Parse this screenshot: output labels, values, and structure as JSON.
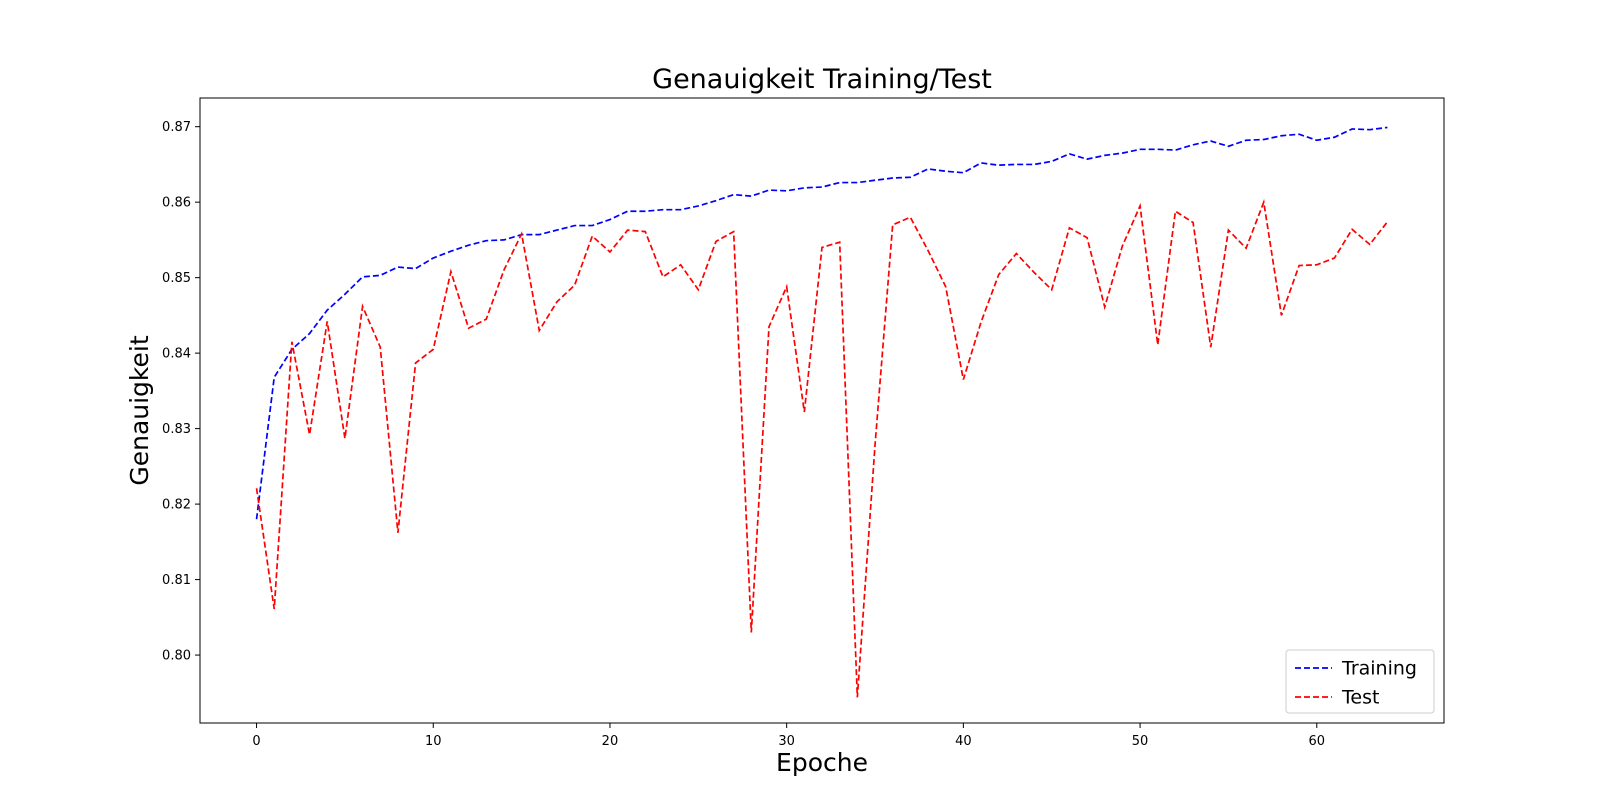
{
  "chart_data": {
    "type": "line",
    "title": "Genauigkeit Training/Test",
    "xlabel": "Epoche",
    "ylabel": "Genauigkeit",
    "xlim": [
      -3.2,
      67.2
    ],
    "ylim": [
      0.791,
      0.8738
    ],
    "xticks": [
      0,
      10,
      20,
      30,
      40,
      50,
      60
    ],
    "yticks": [
      0.8,
      0.81,
      0.82,
      0.83,
      0.84,
      0.85,
      0.86,
      0.87
    ],
    "ytick_format": 2,
    "grid": false,
    "legend_position": "lower-right",
    "x": [
      0,
      1,
      2,
      3,
      4,
      5,
      6,
      7,
      8,
      9,
      10,
      11,
      12,
      13,
      14,
      15,
      16,
      17,
      18,
      19,
      20,
      21,
      22,
      23,
      24,
      25,
      26,
      27,
      28,
      29,
      30,
      31,
      32,
      33,
      34,
      35,
      36,
      37,
      38,
      39,
      40,
      41,
      42,
      43,
      44,
      45,
      46,
      47,
      48,
      49,
      50,
      51,
      52,
      53,
      54,
      55,
      56,
      57,
      58,
      59,
      60,
      61,
      62,
      63,
      64
    ],
    "series": [
      {
        "name": "Training",
        "color": "#0000ff",
        "linestyle": "dashed",
        "values": [
          0.818,
          0.8368,
          0.8405,
          0.8426,
          0.8457,
          0.8478,
          0.8501,
          0.8503,
          0.8514,
          0.8512,
          0.8526,
          0.8535,
          0.8543,
          0.8549,
          0.855,
          0.8557,
          0.8557,
          0.8563,
          0.8569,
          0.8569,
          0.8577,
          0.8588,
          0.8588,
          0.859,
          0.859,
          0.8595,
          0.8602,
          0.861,
          0.8608,
          0.8616,
          0.8615,
          0.8619,
          0.862,
          0.8626,
          0.8626,
          0.8629,
          0.8632,
          0.8633,
          0.8644,
          0.8641,
          0.8639,
          0.8652,
          0.8649,
          0.865,
          0.865,
          0.8654,
          0.8664,
          0.8657,
          0.8662,
          0.8665,
          0.867,
          0.867,
          0.8669,
          0.8676,
          0.8681,
          0.8674,
          0.8682,
          0.8683,
          0.8688,
          0.869,
          0.8682,
          0.8686,
          0.8697,
          0.8696,
          0.8699
        ]
      },
      {
        "name": "Test",
        "color": "#ff0000",
        "linestyle": "dashed",
        "values": [
          0.8221,
          0.8061,
          0.8415,
          0.8292,
          0.8442,
          0.8287,
          0.8462,
          0.8408,
          0.8162,
          0.8387,
          0.8405,
          0.8508,
          0.8433,
          0.8445,
          0.851,
          0.8558,
          0.843,
          0.8468,
          0.849,
          0.8555,
          0.8534,
          0.8563,
          0.8561,
          0.8501,
          0.8517,
          0.8484,
          0.8548,
          0.8561,
          0.803,
          0.8435,
          0.8488,
          0.8322,
          0.854,
          0.8547,
          0.7944,
          0.8278,
          0.857,
          0.858,
          0.8536,
          0.8488,
          0.8365,
          0.8441,
          0.8504,
          0.8532,
          0.8507,
          0.8484,
          0.8566,
          0.8553,
          0.8461,
          0.8542,
          0.8595,
          0.8411,
          0.8588,
          0.8573,
          0.8408,
          0.8563,
          0.8539,
          0.86,
          0.845,
          0.8516,
          0.8517,
          0.8526,
          0.8564,
          0.8544,
          0.8574
        ]
      }
    ]
  }
}
